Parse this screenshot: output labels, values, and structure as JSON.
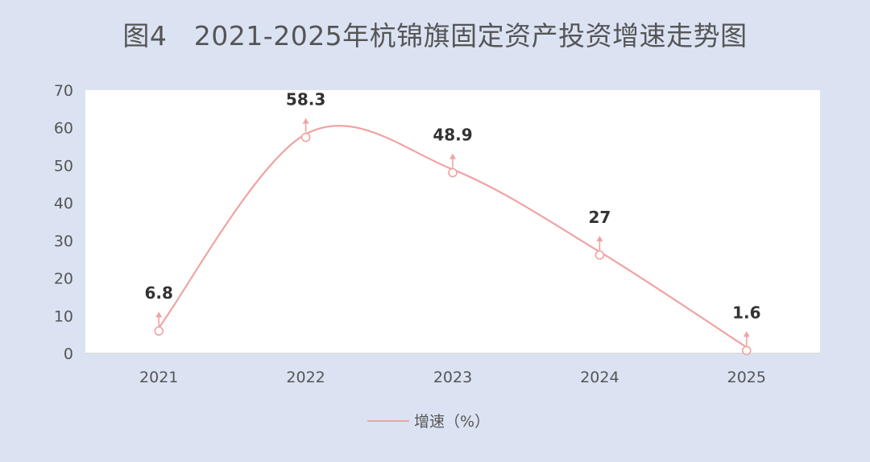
{
  "title": "图4　2021-2025年杭锦旗固定资产投资增速走势图",
  "chart_data": {
    "type": "line",
    "title": "图4　2021-2025年杭锦旗固定资产投资增速走势图",
    "categories": [
      "2021",
      "2022",
      "2023",
      "2024",
      "2025"
    ],
    "series": [
      {
        "name": "增速（%）",
        "values": [
          6.8,
          58.3,
          48.9,
          27,
          1.6
        ],
        "data_labels": [
          "6.8",
          "58.3",
          "48.9",
          "27",
          "1.6"
        ]
      }
    ],
    "ylim": [
      0,
      70
    ],
    "yticks": [
      0,
      10,
      20,
      30,
      40,
      50,
      60,
      70
    ],
    "smooth": true,
    "grid": false,
    "legend": "bottom-center",
    "xlabel": "",
    "ylabel": ""
  },
  "colors": {
    "background": "#dbe3f3",
    "plot_background": "#ffffff",
    "series_line": "#f0a3a3",
    "axis": "#d9d9d9"
  },
  "legend": {
    "label": "增速（%）"
  }
}
